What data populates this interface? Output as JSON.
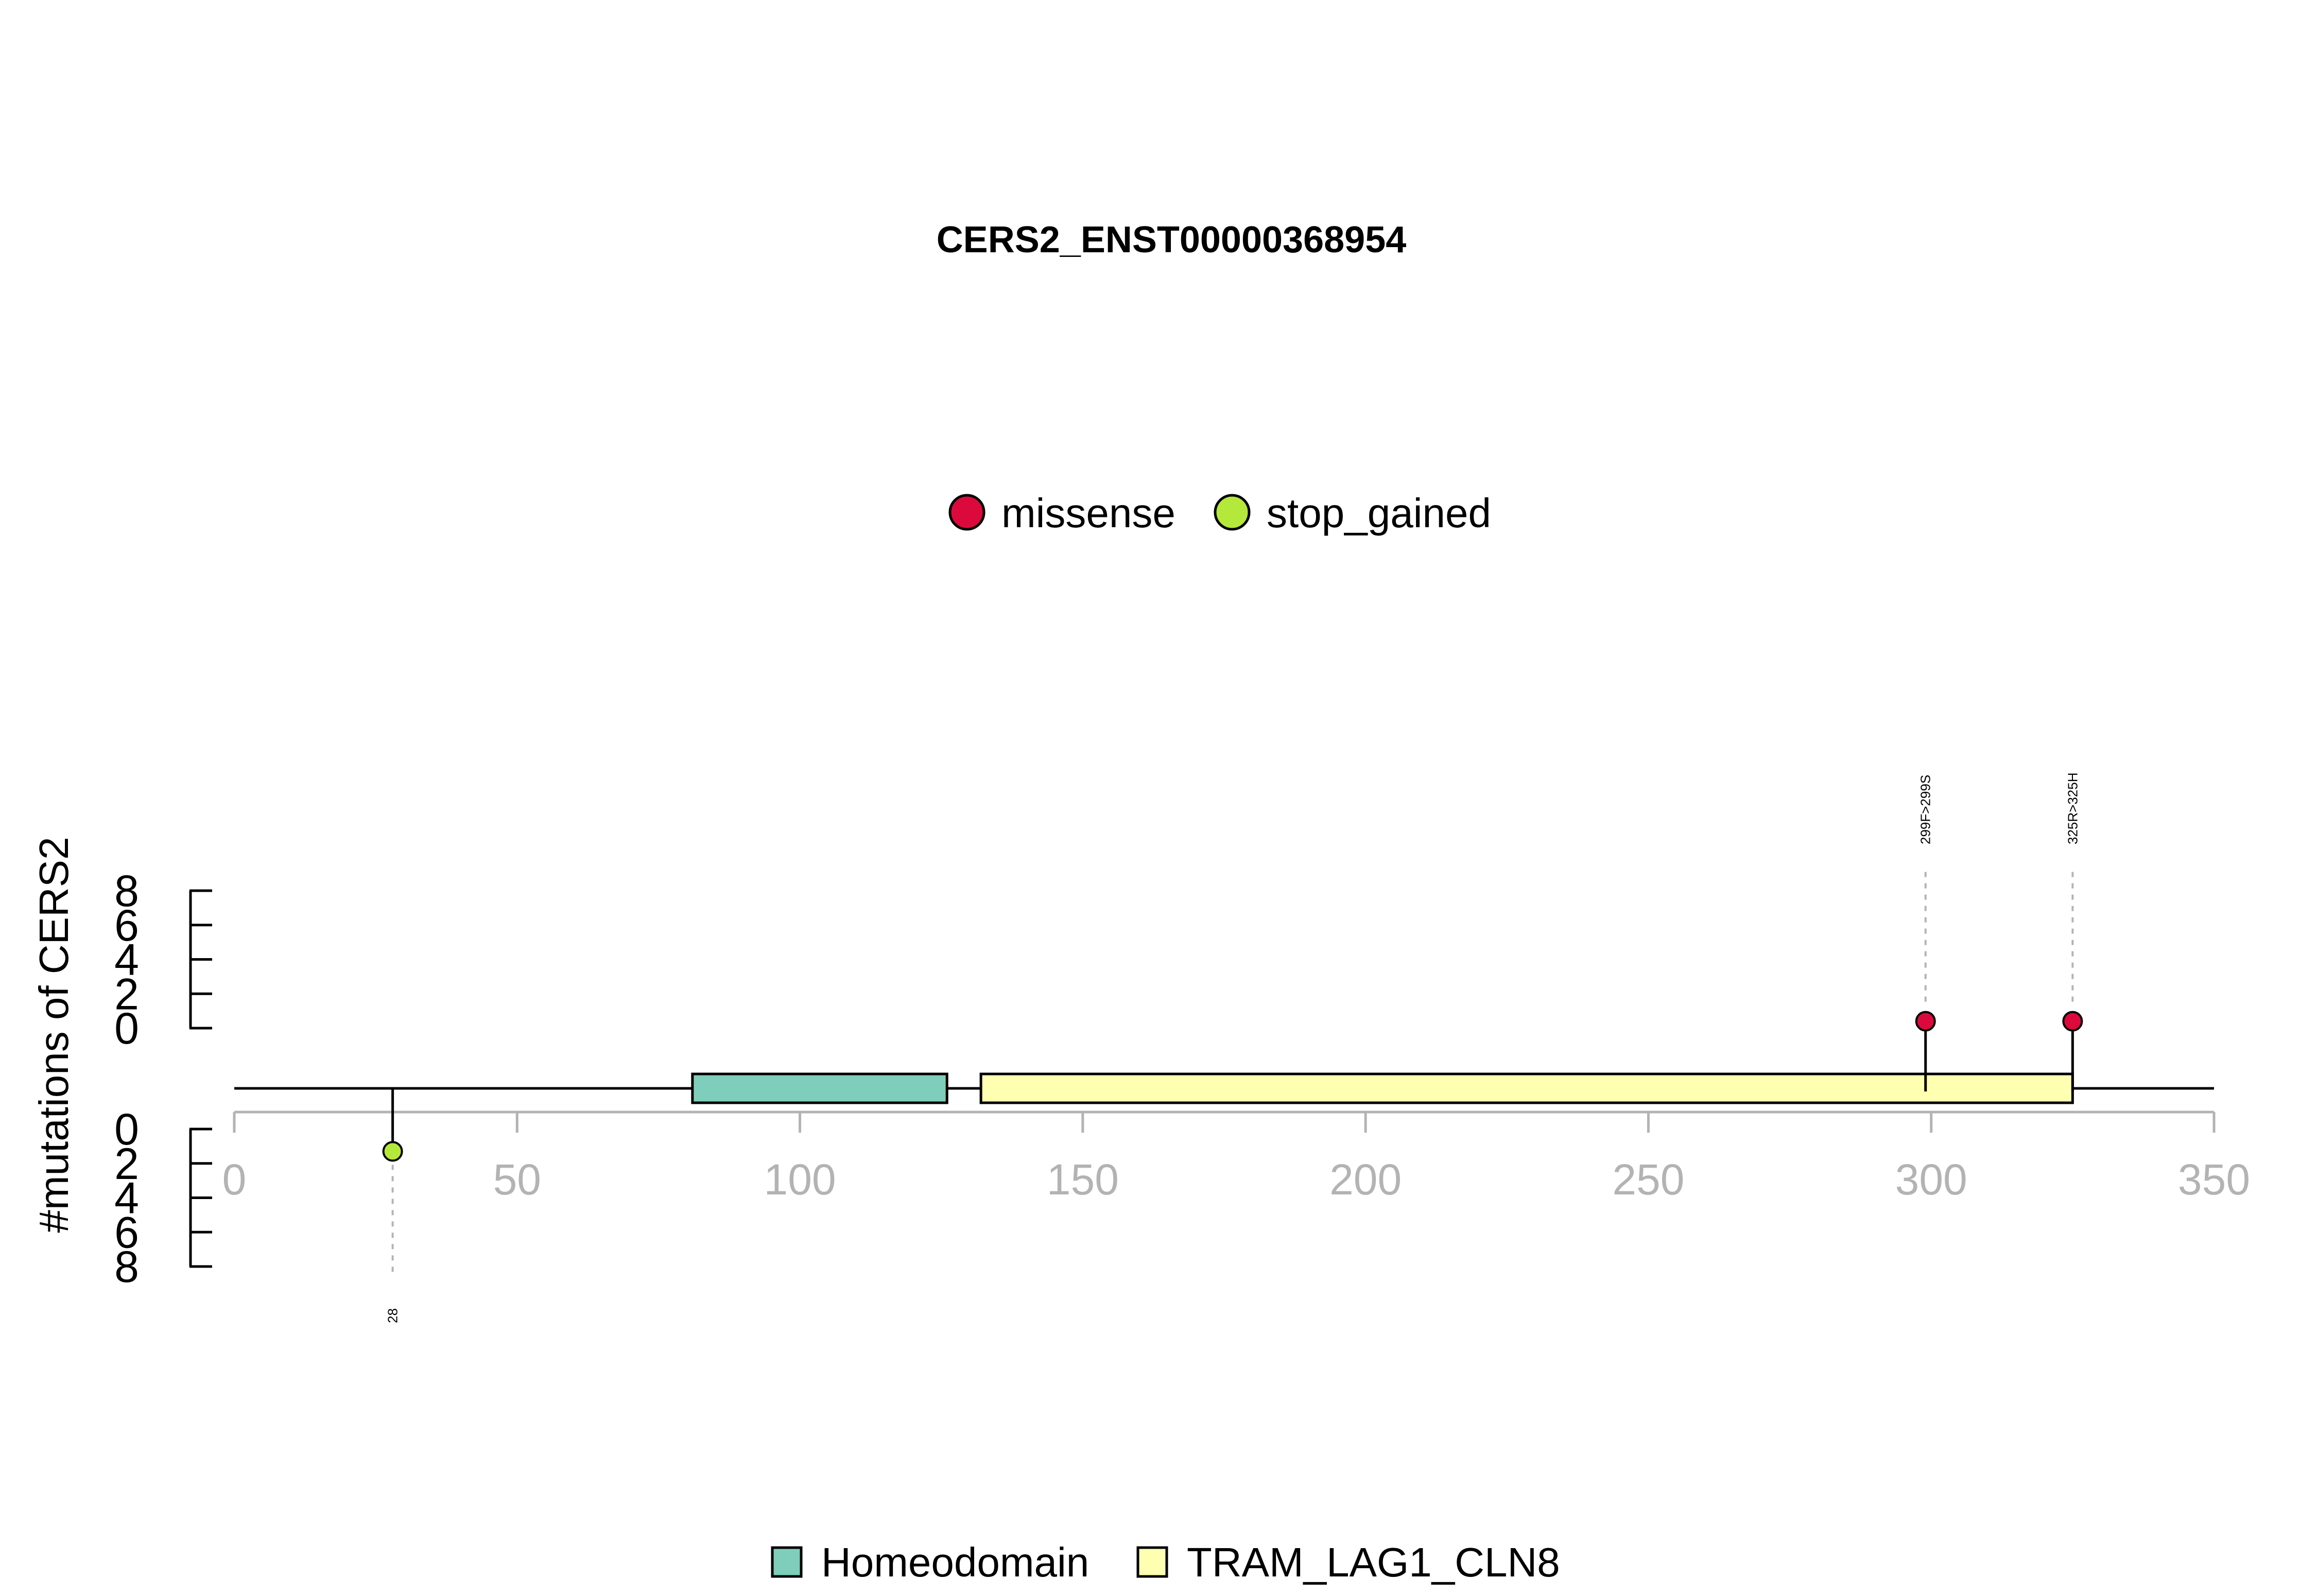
{
  "chart_data": {
    "type": "lollipop",
    "title": "CERS2_ENST00000368954",
    "ylabel": "#mutations of CERS2",
    "xlim": [
      0,
      350
    ],
    "x_ticks": [
      0,
      50,
      100,
      150,
      200,
      250,
      300,
      350
    ],
    "ylim": [
      0,
      8
    ],
    "y_ticks_upper": [
      8,
      6,
      4,
      2,
      0
    ],
    "y_ticks_lower": [
      0,
      2,
      4,
      6,
      8
    ],
    "mutation_legend": [
      {
        "label": "missense",
        "color": "#dc0a3c"
      },
      {
        "label": "stop_gained",
        "color": "#b4e83a"
      }
    ],
    "domain_legend": [
      {
        "label": "Homeodomain",
        "color": "#7fcdbb"
      },
      {
        "label": "TRAM_LAG1_CLN8",
        "color": "#ffffb2"
      }
    ],
    "domains": [
      {
        "name": "Homeodomain",
        "start": 81,
        "end": 126,
        "color": "#7fcdbb"
      },
      {
        "name": "TRAM_LAG1_CLN8",
        "start": 132,
        "end": 325,
        "color": "#ffffb2"
      }
    ],
    "mutations": [
      {
        "position": 28,
        "count": 1,
        "type": "stop_gained",
        "label": "28",
        "side": "below"
      },
      {
        "position": 299,
        "count": 1,
        "type": "missense",
        "label": "299F>299S",
        "side": "above"
      },
      {
        "position": 325,
        "count": 1,
        "type": "missense",
        "label": "325R>325H",
        "side": "above"
      }
    ]
  }
}
